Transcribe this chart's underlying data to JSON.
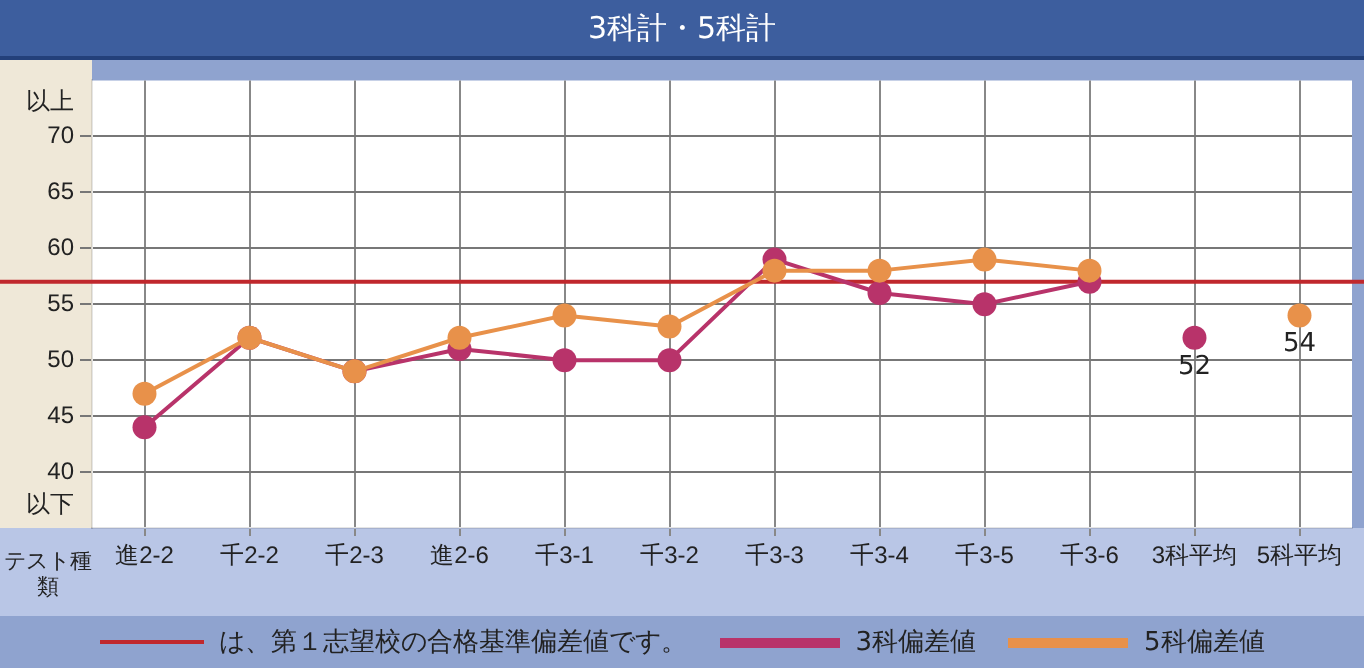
{
  "chart_data": {
    "type": "line",
    "title": "3科計・5科計",
    "xlabel": "テスト種類",
    "categories": [
      "進2-2",
      "千2-2",
      "千2-3",
      "進2-6",
      "千3-1",
      "千3-2",
      "千3-3",
      "千3-4",
      "千3-5",
      "千3-6",
      "3科平均",
      "5科平均"
    ],
    "series": [
      {
        "name": "3科偏差値",
        "color": "#b8336a",
        "values": [
          44,
          52,
          49,
          51,
          50,
          50,
          59,
          56,
          55,
          57,
          null,
          null
        ]
      },
      {
        "name": "5科偏差値",
        "color": "#e8914a",
        "values": [
          47,
          52,
          49,
          52,
          54,
          53,
          58,
          58,
          59,
          58,
          null,
          null
        ]
      },
      {
        "type": "scatter",
        "color": "#b8336a",
        "x": [
          "3科平均"
        ],
        "values": [
          52
        ],
        "value_labels": [
          "52"
        ]
      },
      {
        "type": "scatter",
        "color": "#e8914a",
        "x": [
          "5科平均"
        ],
        "values": [
          54
        ],
        "value_labels": [
          "54"
        ]
      }
    ],
    "ylim": [
      35,
      75
    ],
    "yticks": [
      {
        "value": 37,
        "label": "以下"
      },
      40,
      45,
      50,
      55,
      60,
      65,
      70,
      {
        "value": 73,
        "label": "以上"
      }
    ],
    "ref_lines": [
      {
        "axis": "y",
        "value": 57,
        "label": "は、第１志望校の合格基準偏差値です。",
        "color": "#c0282d"
      }
    ],
    "grid": true,
    "legend": "bottom",
    "marker": "circle"
  }
}
